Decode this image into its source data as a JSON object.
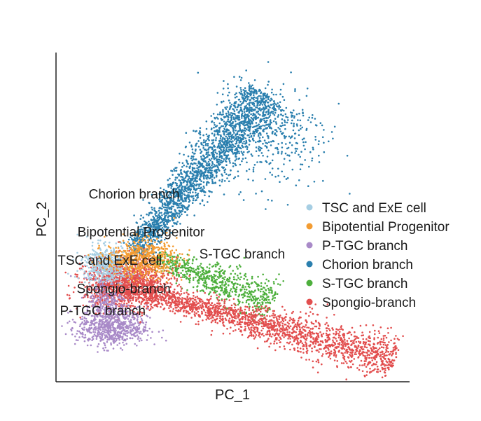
{
  "chart_data": {
    "type": "scatter",
    "title": "",
    "xlabel": "PC_1",
    "ylabel": "PC_2",
    "xlim": [
      0,
      100
    ],
    "ylim": [
      0,
      100
    ],
    "grid": false,
    "legend_position": "right",
    "series": [
      {
        "name": "TSC and ExE cell",
        "color": "#a6cee3",
        "clusters": [
          {
            "cx": 14,
            "cy": 36,
            "sx": 3.5,
            "sy": 3,
            "n": 500
          }
        ]
      },
      {
        "name": "Bipotential Progenitor",
        "color": "#f39c32",
        "clusters": [
          {
            "cx": 24,
            "cy": 38,
            "sx": 5,
            "sy": 3,
            "n": 550
          }
        ]
      },
      {
        "name": "P-TGC branch",
        "color": "#a98ac8",
        "clusters": [
          {
            "cx": 16,
            "cy": 16,
            "sx": 5,
            "sy": 3,
            "n": 650
          },
          {
            "cx": 14,
            "cy": 24,
            "sx": 3,
            "sy": 4,
            "n": 250
          }
        ]
      },
      {
        "name": "Chorion branch",
        "color": "#2a7fae",
        "trajectory": {
          "x0": 22,
          "y0": 40,
          "x1": 60,
          "y1": 90,
          "spread": 3.2,
          "n": 2200
        },
        "cloud": {
          "cx": 64,
          "cy": 78,
          "sx": 7,
          "sy": 9,
          "n": 300
        }
      },
      {
        "name": "S-TGC branch",
        "color": "#4daf3c",
        "trajectory": {
          "x0": 28,
          "y0": 38,
          "x1": 62,
          "y1": 24,
          "spread": 2.5,
          "n": 700
        }
      },
      {
        "name": "Spongio-branch",
        "color": "#e24e4e",
        "clusters": [
          {
            "cx": 20,
            "cy": 30,
            "sx": 6,
            "sy": 4,
            "n": 1400
          }
        ],
        "trajectory": {
          "x0": 25,
          "y0": 27,
          "x1": 97,
          "y1": 6,
          "spread": 2.6,
          "n": 1800
        }
      }
    ],
    "annotations": [
      {
        "text": "Chorion branch",
        "x": 22,
        "y": 57
      },
      {
        "text": "Bipotential Progenitor",
        "x": 24,
        "y": 45
      },
      {
        "text": "S-TGC branch",
        "x": 53,
        "y": 38
      },
      {
        "text": "TSC and ExE cell",
        "x": 15,
        "y": 36
      },
      {
        "text": "Spongio-branch",
        "x": 19,
        "y": 27
      },
      {
        "text": "P-TGC branch",
        "x": 13,
        "y": 20
      }
    ]
  }
}
